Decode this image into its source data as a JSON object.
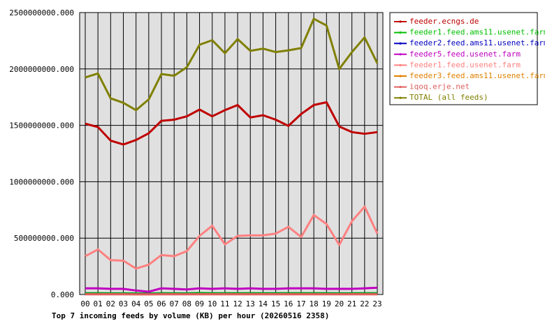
{
  "chart_data": {
    "type": "line",
    "title": "Top 7 incoming feeds by volume (KB) per hour (20260516 2358)",
    "xlabel": "",
    "ylabel": "",
    "grid": true,
    "legend_position": "top-right",
    "categories": [
      "00",
      "01",
      "02",
      "03",
      "04",
      "05",
      "06",
      "07",
      "08",
      "09",
      "10",
      "11",
      "12",
      "13",
      "14",
      "15",
      "16",
      "17",
      "18",
      "19",
      "20",
      "21",
      "22",
      "23"
    ],
    "y_ticks": [
      "0.000",
      "500000000.000",
      "1000000000.000",
      "1500000000.000",
      "2000000000.000",
      "2500000000.000"
    ],
    "ylim": [
      0,
      2500000000
    ],
    "series": [
      {
        "name": "feeder.ecngs.de",
        "color": "#c00000",
        "values": [
          1515000000,
          1485000000,
          1365000000,
          1330000000,
          1370000000,
          1430000000,
          1540000000,
          1550000000,
          1580000000,
          1640000000,
          1580000000,
          1635000000,
          1680000000,
          1570000000,
          1590000000,
          1550000000,
          1495000000,
          1600000000,
          1680000000,
          1705000000,
          1490000000,
          1440000000,
          1425000000,
          1440000000
        ]
      },
      {
        "name": "feeder1.feed.ams11.usenet.farm",
        "color": "#00c000",
        "values": [
          12000000,
          12000000,
          11000000,
          11000000,
          10000000,
          9000000,
          12000000,
          11000000,
          11000000,
          13000000,
          12000000,
          12000000,
          12000000,
          12000000,
          12000000,
          12000000,
          12000000,
          12000000,
          12000000,
          12000000,
          11000000,
          11000000,
          12000000,
          12000000
        ]
      },
      {
        "name": "feeder2.feed.ams11.usenet.farm",
        "color": "#0000c0",
        "values": [
          5000000,
          5000000,
          5000000,
          5000000,
          4000000,
          4000000,
          5000000,
          5000000,
          5000000,
          5000000,
          5000000,
          5000000,
          5000000,
          5000000,
          5000000,
          5000000,
          5000000,
          5000000,
          5000000,
          5000000,
          5000000,
          5000000,
          5000000,
          5000000
        ]
      },
      {
        "name": "feeder5.feed.usenet.farm",
        "color": "#c000c0",
        "values": [
          55000000,
          55000000,
          50000000,
          50000000,
          35000000,
          25000000,
          55000000,
          50000000,
          45000000,
          55000000,
          50000000,
          55000000,
          50000000,
          55000000,
          50000000,
          50000000,
          55000000,
          55000000,
          55000000,
          50000000,
          50000000,
          50000000,
          55000000,
          60000000
        ]
      },
      {
        "name": "feeder1.feed.usenet.farm",
        "color": "#ff8080",
        "values": [
          340000000,
          400000000,
          305000000,
          300000000,
          230000000,
          265000000,
          350000000,
          340000000,
          385000000,
          520000000,
          610000000,
          445000000,
          520000000,
          525000000,
          525000000,
          540000000,
          600000000,
          510000000,
          705000000,
          625000000,
          440000000,
          650000000,
          780000000,
          540000000
        ]
      },
      {
        "name": "feeder3.feed.ams11.usenet.farm",
        "color": "#e08000",
        "values": [
          3000000,
          3000000,
          3000000,
          3000000,
          2000000,
          2000000,
          3000000,
          3000000,
          3000000,
          3000000,
          3000000,
          3000000,
          3000000,
          3000000,
          3000000,
          3000000,
          3000000,
          3000000,
          3000000,
          3000000,
          3000000,
          3000000,
          3000000,
          3000000
        ]
      },
      {
        "name": "iqoq.erje.net",
        "color": "#e06060",
        "values": [
          1000000,
          1000000,
          1000000,
          1000000,
          1000000,
          1000000,
          1000000,
          1000000,
          1000000,
          1000000,
          1000000,
          1000000,
          1000000,
          1000000,
          1000000,
          1000000,
          1000000,
          1000000,
          1000000,
          1000000,
          1000000,
          1000000,
          1000000,
          1000000
        ]
      },
      {
        "name": "TOTAL (all feeds)",
        "color": "#808000",
        "values": [
          1925000000,
          1960000000,
          1740000000,
          1700000000,
          1635000000,
          1730000000,
          1955000000,
          1940000000,
          2015000000,
          2215000000,
          2255000000,
          2140000000,
          2265000000,
          2160000000,
          2180000000,
          2150000000,
          2165000000,
          2185000000,
          2445000000,
          2385000000,
          2000000000,
          2150000000,
          2280000000,
          2050000000
        ]
      }
    ]
  }
}
